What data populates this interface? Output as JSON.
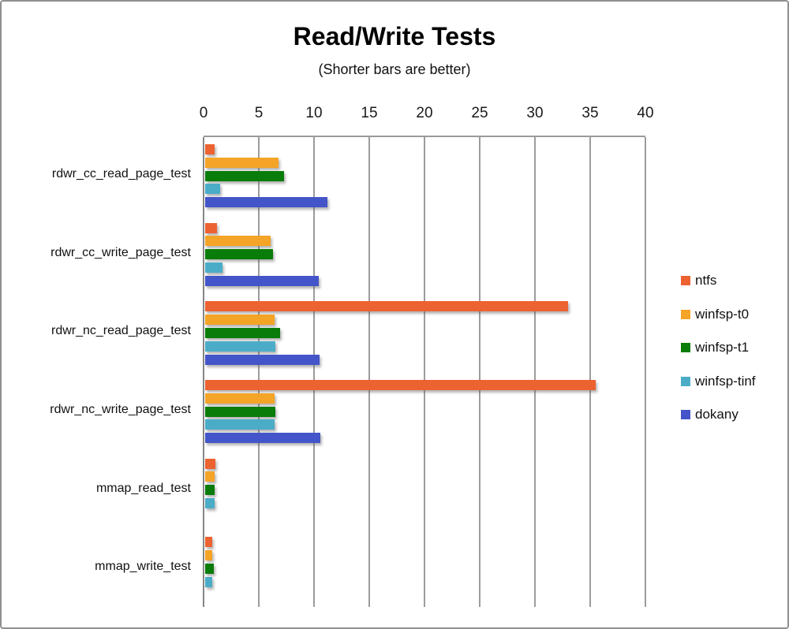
{
  "chart_data": {
    "type": "bar",
    "orientation": "horizontal",
    "title": "Read/Write Tests",
    "subtitle": "(Shorter bars are better)",
    "note": "grouped horizontal bar chart, vertical gridlines, x axis on top, legend at right",
    "categories": [
      "rdwr_cc_read_page_test",
      "rdwr_cc_write_page_test",
      "rdwr_nc_read_page_test",
      "rdwr_nc_write_page_test",
      "mmap_read_test",
      "mmap_write_test"
    ],
    "series": [
      {
        "name": "ntfs",
        "color": "#EC6231",
        "values": [
          1.0,
          1.2,
          33.0,
          35.5,
          1.1,
          0.8
        ]
      },
      {
        "name": "winfsp-t0",
        "color": "#F4A427",
        "values": [
          6.8,
          6.1,
          6.4,
          6.4,
          1.0,
          0.8
        ]
      },
      {
        "name": "winfsp-t1",
        "color": "#097C09",
        "values": [
          7.3,
          6.3,
          6.9,
          6.5,
          1.0,
          0.9
        ]
      },
      {
        "name": "winfsp-tinf",
        "color": "#4BACC8",
        "values": [
          1.5,
          1.7,
          6.5,
          6.4,
          1.0,
          0.8
        ]
      },
      {
        "name": "dokany",
        "color": "#4355C8",
        "values": [
          11.2,
          10.4,
          10.5,
          10.6,
          0,
          0
        ]
      }
    ],
    "x_ticks": [
      0,
      5,
      10,
      15,
      20,
      25,
      30,
      35,
      40
    ],
    "xlim": [
      0,
      40
    ],
    "grid": "on",
    "legend_position": "right"
  },
  "colors": {
    "gridline": "#9c9c9c",
    "axis_line": "#858585",
    "frame_border": "#8f8f8f",
    "background": "#ffffff"
  }
}
